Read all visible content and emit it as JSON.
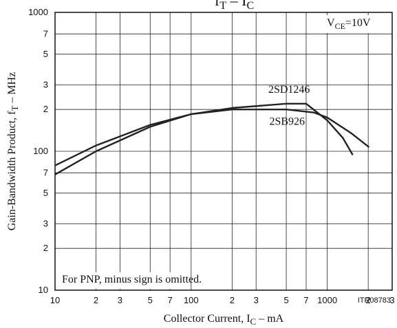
{
  "chart_data": {
    "type": "line",
    "title": {
      "main": "f",
      "sub": "T",
      "mid": " – I",
      "sub2": "C"
    },
    "x_label": {
      "main": "Collector Current, I",
      "sub": "C",
      "rest": " – mA"
    },
    "y_label": {
      "main": "Gain-Bandwidth Product, f",
      "sub": "T",
      "rest": " – MHz"
    },
    "annotations": {
      "condition": {
        "main": "V",
        "sub": "CE",
        "rest": "=10V"
      },
      "note": "For PNP, minus sign is omitted.",
      "code": "ITR08783"
    },
    "xscale": "log",
    "yscale": "log",
    "grid": true,
    "xlim": [
      10,
      3000
    ],
    "ylim": [
      10,
      1000
    ],
    "xticks": [
      10,
      {
        "value": 20,
        "label": "2"
      },
      {
        "value": 30,
        "label": "3"
      },
      {
        "value": 50,
        "label": "5"
      },
      {
        "value": 70,
        "label": "7"
      },
      100,
      {
        "value": 200,
        "label": "2"
      },
      {
        "value": 300,
        "label": "3"
      },
      {
        "value": 500,
        "label": "5"
      },
      {
        "value": 700,
        "label": "7"
      },
      1000,
      {
        "value": 2000,
        "label": "2"
      },
      {
        "value": 3000,
        "label": "3"
      }
    ],
    "yticks": [
      10,
      {
        "value": 20,
        "label": "2"
      },
      {
        "value": 30,
        "label": "3"
      },
      {
        "value": 50,
        "label": "5"
      },
      {
        "value": 70,
        "label": "7"
      },
      100,
      {
        "value": 200,
        "label": "2"
      },
      {
        "value": 300,
        "label": "3"
      },
      {
        "value": 500,
        "label": "5"
      },
      {
        "value": 700,
        "label": "7"
      },
      1000
    ],
    "series": [
      {
        "name": "2SD1246",
        "color": "#222222",
        "x": [
          10,
          20,
          50,
          100,
          200,
          500,
          700,
          1000,
          1300,
          1540
        ],
        "values": [
          68,
          100,
          150,
          185,
          205,
          220,
          220,
          167,
          125,
          94
        ]
      },
      {
        "name": "2SB926",
        "color": "#222222",
        "x": [
          10,
          20,
          50,
          100,
          200,
          500,
          800,
          1000,
          1500,
          2030
        ],
        "values": [
          79,
          110,
          155,
          185,
          200,
          200,
          190,
          175,
          135,
          107
        ]
      }
    ]
  }
}
